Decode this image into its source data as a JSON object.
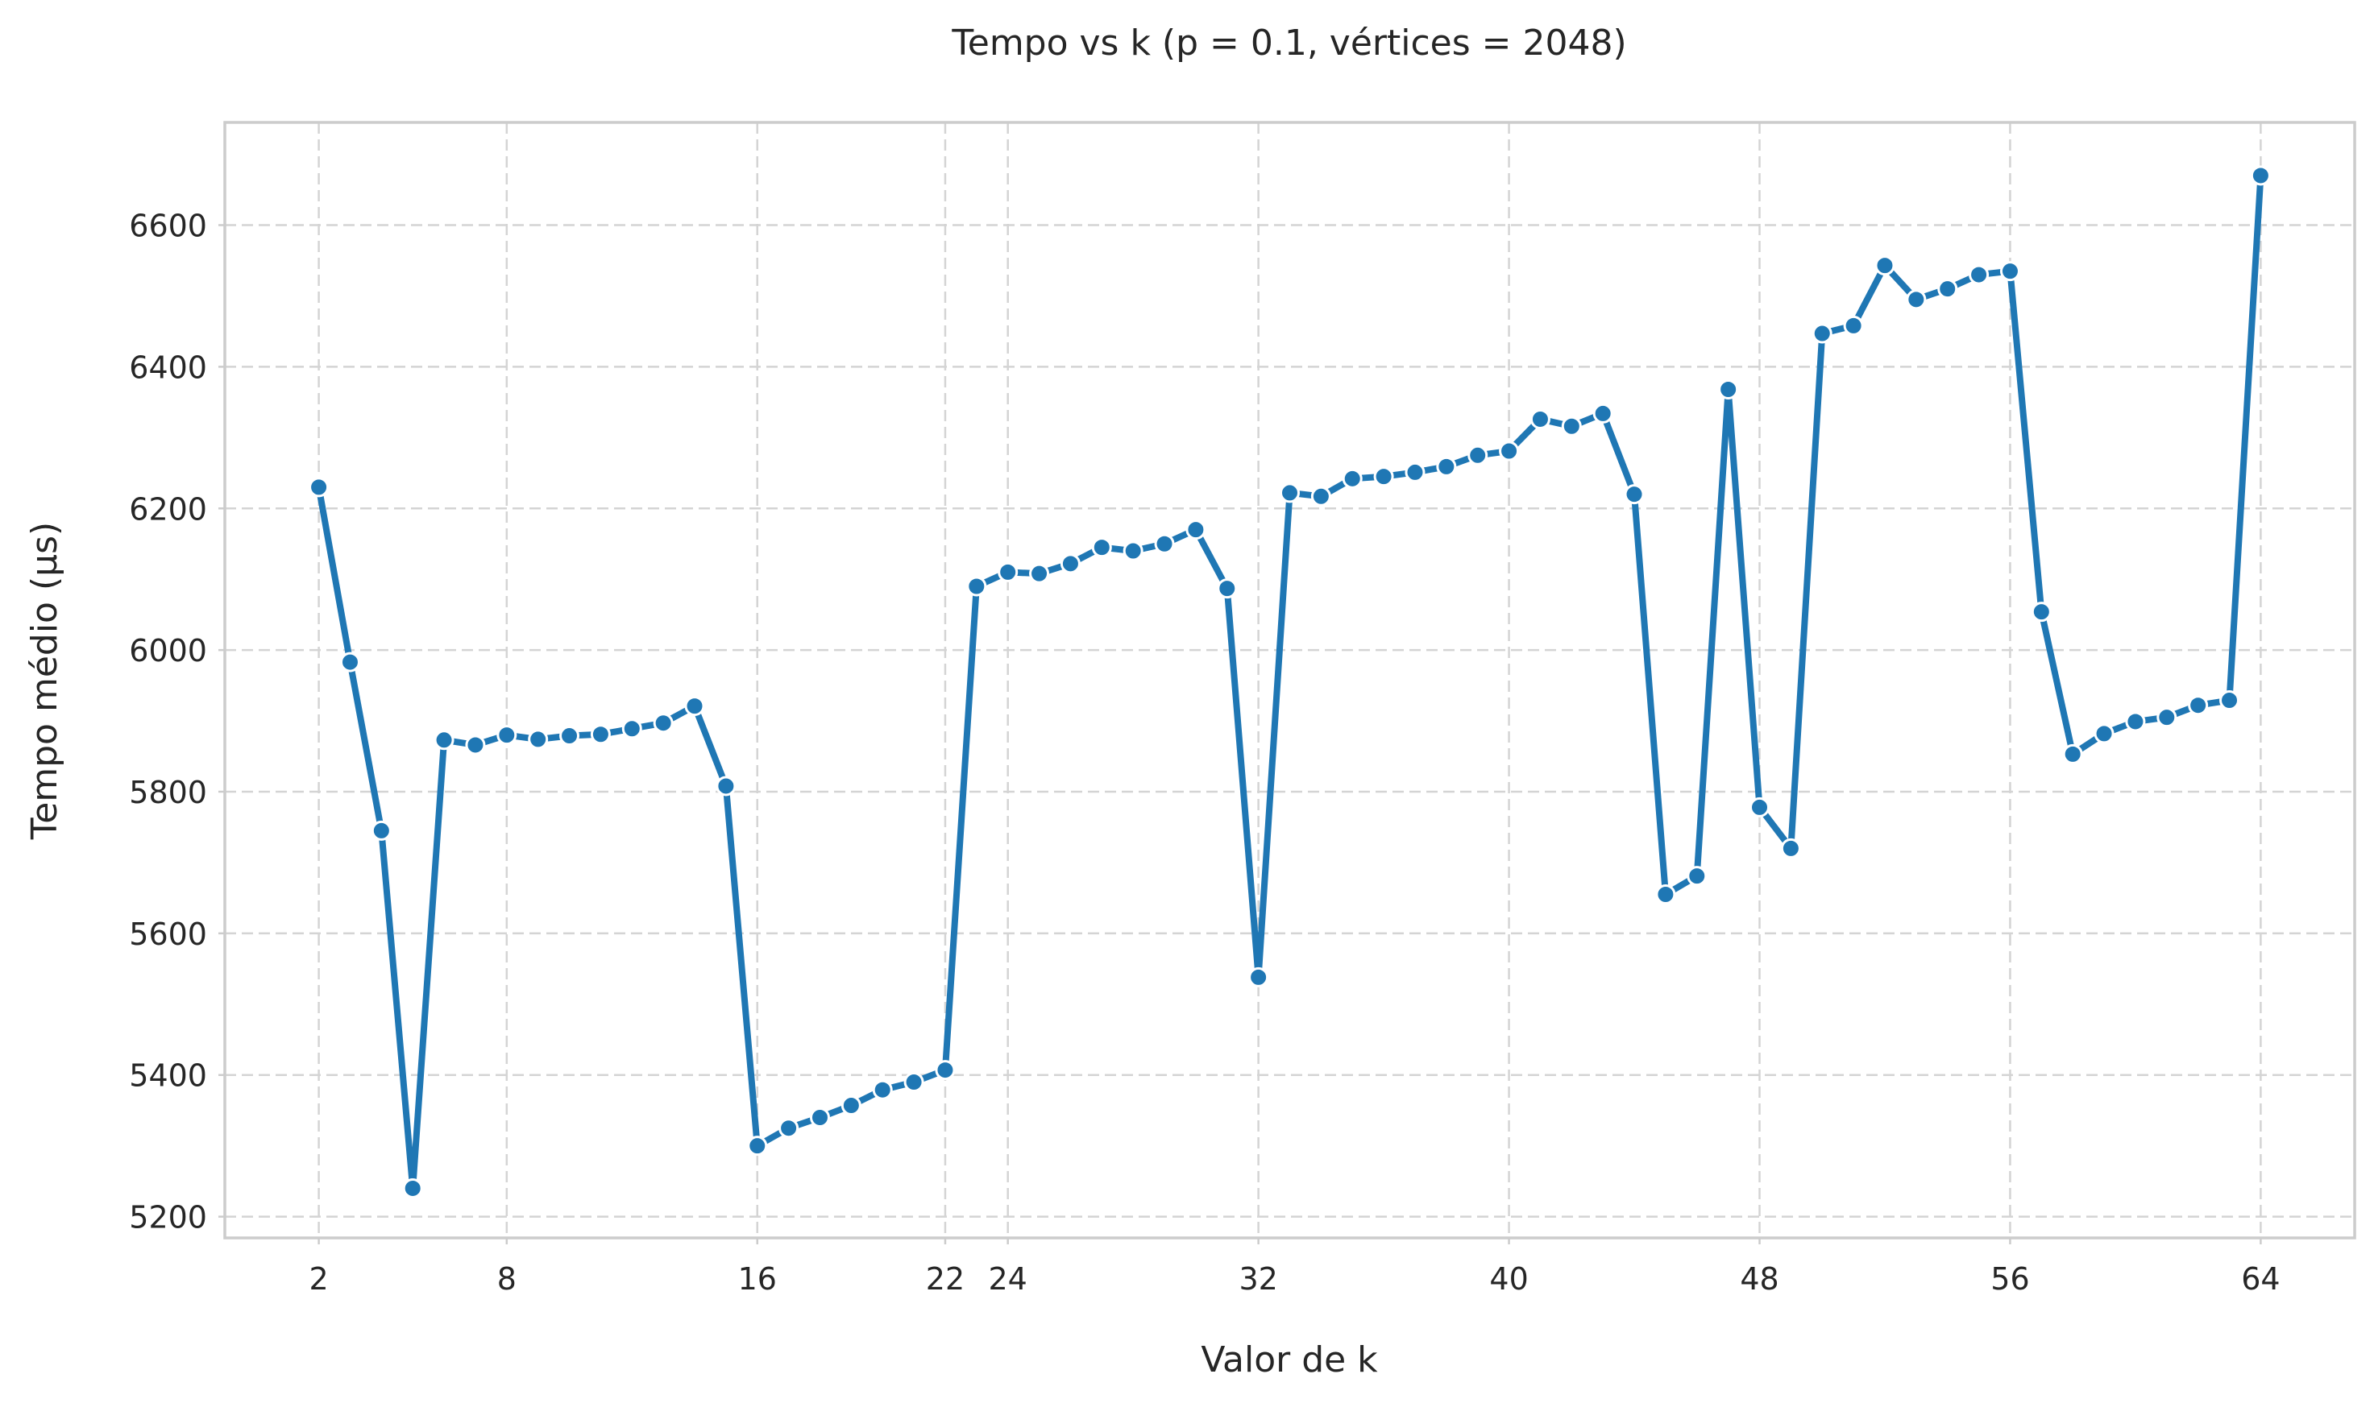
{
  "chart_data": {
    "type": "line",
    "title": "Tempo vs k (p = 0.1, vértices = 2048)",
    "xlabel": "Valor de k",
    "ylabel": "Tempo médio (µs)",
    "xlim": [
      -1,
      67
    ],
    "ylim": [
      5170,
      6745
    ],
    "xticks": [
      2,
      8,
      16,
      22,
      24,
      32,
      40,
      48,
      56,
      64
    ],
    "yticks": [
      5200,
      5400,
      5600,
      5800,
      6000,
      6200,
      6400,
      6600
    ],
    "grid": true,
    "legend": "none",
    "color": "#1f77b4",
    "series": [
      {
        "x": [
          2,
          3,
          4,
          5,
          6,
          7,
          8,
          9,
          10,
          11,
          12,
          13,
          14,
          15,
          16,
          17,
          18,
          19,
          20,
          21,
          22,
          23,
          24,
          25,
          26,
          27,
          28,
          29,
          30,
          31,
          32,
          33,
          34,
          35,
          36,
          37,
          38,
          39,
          40,
          41,
          42,
          43,
          44,
          45,
          46,
          47,
          48,
          49,
          50,
          51,
          52,
          53,
          54,
          55,
          56,
          57,
          58,
          59,
          60,
          61,
          62,
          63,
          64
        ],
        "values": [
          6230,
          5983,
          5745,
          5240,
          5873,
          5866,
          5880,
          5874,
          5879,
          5881,
          5889,
          5897,
          5921,
          5808,
          5300,
          5325,
          5340,
          5357,
          5379,
          5390,
          5407,
          6090,
          6110,
          6108,
          6122,
          6145,
          6140,
          6150,
          6170,
          6087,
          5538,
          6222,
          6217,
          6242,
          6245,
          6251,
          6259,
          6275,
          6281,
          6326,
          6316,
          6334,
          6220,
          5655,
          5681,
          6368,
          5778,
          5720,
          6447,
          6458,
          6543,
          6495,
          6510,
          6530,
          6535,
          6054,
          5853,
          5882,
          5899,
          5905,
          5922,
          5929,
          6670
        ]
      }
    ]
  }
}
